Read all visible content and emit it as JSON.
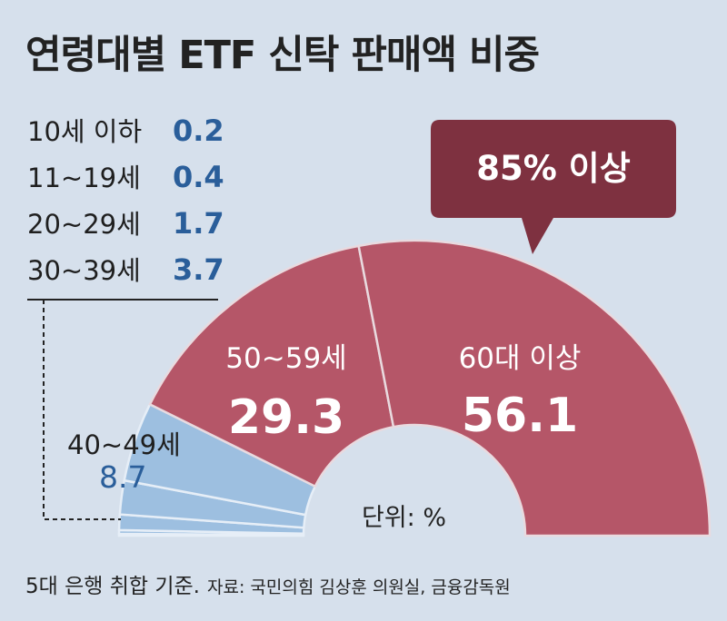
{
  "title": "연령대별 ETF 신탁 판매액 비중",
  "footnote": {
    "basis": "5대 은행 취합 기준.",
    "source": "자료: 국민의힘 김상훈 의원실, 금융감독원"
  },
  "colors": {
    "background": "#d6e0ec",
    "young": "#9dbfe0",
    "older": "#b55668",
    "callout": "#7e3140",
    "value_blue": "#2a5e9a"
  },
  "chart_data": {
    "type": "pie",
    "shape": "semicircle-donut",
    "unit": "%",
    "unit_label": "단위: %",
    "slices": [
      {
        "label": "10세 이하",
        "value": 0.2,
        "display": "0.2"
      },
      {
        "label": "11~19세",
        "value": 0.4,
        "display": "0.4"
      },
      {
        "label": "20~29세",
        "value": 1.7,
        "display": "1.7"
      },
      {
        "label": "30~39세",
        "value": 3.7,
        "display": "3.7"
      },
      {
        "label": "40~49세",
        "value": 8.7,
        "display": "8.7"
      },
      {
        "label": "50~59세",
        "value": 29.3,
        "display": "29.3"
      },
      {
        "label": "60대 이상",
        "value": 56.1,
        "display": "56.1"
      }
    ],
    "callout": "85% 이상"
  }
}
